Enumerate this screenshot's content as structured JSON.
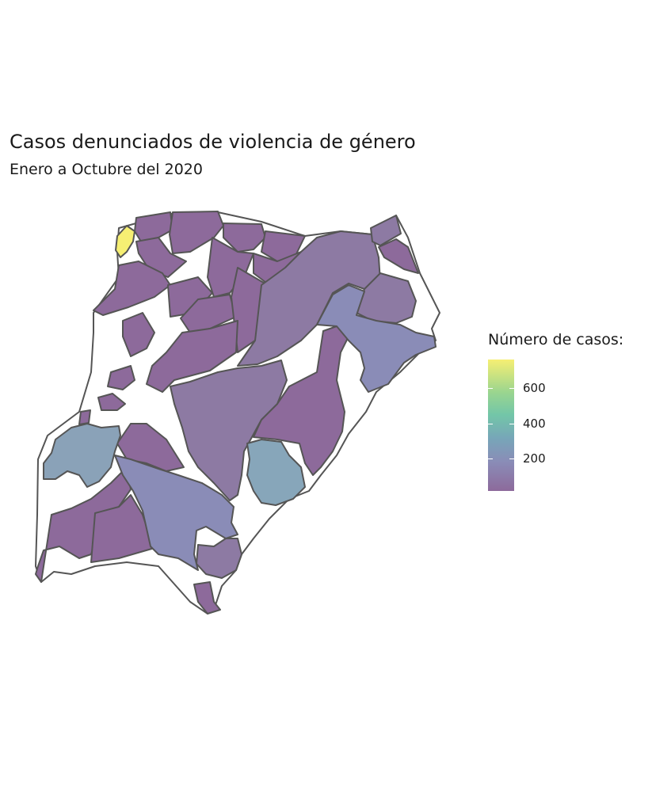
{
  "title": "Casos denunciados de violencia de género",
  "subtitle": "Enero a Octubre del 2020",
  "legend": {
    "title": "Número de casos:",
    "ticks": [
      "600",
      "400",
      "200"
    ]
  },
  "colors": {
    "outline": "#555555",
    "no_data": "#ffffff",
    "high": "#f6ef73",
    "low": "#8d6a9b"
  },
  "map_data": {
    "type": "choropleth",
    "value_name": "Número de casos",
    "scale": "viridis",
    "range": [
      0,
      780
    ]
  }
}
